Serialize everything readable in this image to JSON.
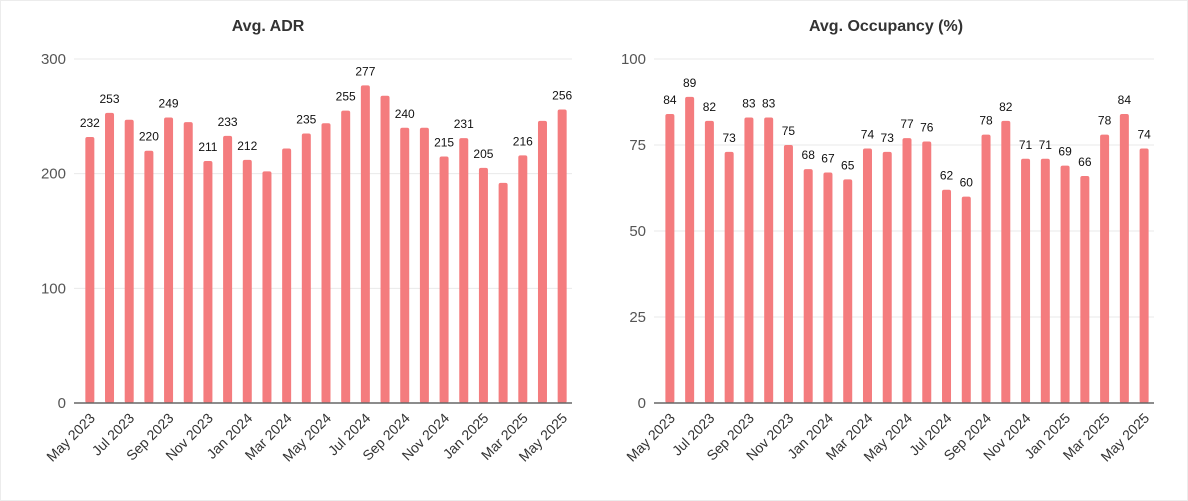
{
  "chart_data": [
    {
      "type": "bar",
      "title": "Avg. ADR",
      "xlabel": "",
      "ylabel": "",
      "ylim": [
        0,
        300
      ],
      "yticks": [
        0,
        100,
        200,
        300
      ],
      "grid": true,
      "color": "#F47C7E",
      "categories": [
        "May 2023",
        "Jun 2023",
        "Jul 2023",
        "Aug 2023",
        "Sep 2023",
        "Oct 2023",
        "Nov 2023",
        "Dec 2023",
        "Jan 2024",
        "Feb 2024",
        "Mar 2024",
        "Apr 2024",
        "May 2024",
        "Jun 2024",
        "Jul 2024",
        "Aug 2024",
        "Sep 2024",
        "Oct 2024",
        "Nov 2024",
        "Dec 2024",
        "Jan 2025",
        "Feb 2025",
        "Mar 2025",
        "Apr 2025",
        "May 2025"
      ],
      "tick_labels": [
        "May 2023",
        "Jul 2023",
        "Sep 2023",
        "Nov 2023",
        "Jan 2024",
        "Mar 2024",
        "May 2024",
        "Jul 2024",
        "Sep 2024",
        "Nov 2024",
        "Jan 2025",
        "Mar 2025",
        "May 2025"
      ],
      "values": [
        232,
        253,
        247,
        220,
        249,
        245,
        211,
        233,
        212,
        202,
        222,
        235,
        244,
        255,
        277,
        268,
        240,
        240,
        215,
        231,
        205,
        192,
        216,
        246,
        256
      ],
      "data_labels": [
        232,
        253,
        null,
        220,
        249,
        null,
        211,
        233,
        212,
        null,
        null,
        235,
        null,
        255,
        277,
        null,
        240,
        null,
        215,
        231,
        205,
        null,
        216,
        null,
        256
      ]
    },
    {
      "type": "bar",
      "title": "Avg. Occupancy (%)",
      "xlabel": "",
      "ylabel": "",
      "ylim": [
        0,
        100
      ],
      "yticks": [
        0,
        25,
        50,
        75,
        100
      ],
      "grid": true,
      "color": "#F47C7E",
      "categories": [
        "May 2023",
        "Jun 2023",
        "Jul 2023",
        "Aug 2023",
        "Sep 2023",
        "Oct 2023",
        "Nov 2023",
        "Dec 2023",
        "Jan 2024",
        "Feb 2024",
        "Mar 2024",
        "Apr 2024",
        "May 2024",
        "Jun 2024",
        "Jul 2024",
        "Aug 2024",
        "Sep 2024",
        "Oct 2024",
        "Nov 2024",
        "Dec 2024",
        "Jan 2025",
        "Feb 2025",
        "Mar 2025",
        "Apr 2025",
        "May 2025"
      ],
      "tick_labels": [
        "May 2023",
        "Jul 2023",
        "Sep 2023",
        "Nov 2023",
        "Jan 2024",
        "Mar 2024",
        "May 2024",
        "Jul 2024",
        "Sep 2024",
        "Nov 2024",
        "Jan 2025",
        "Mar 2025",
        "May 2025"
      ],
      "values": [
        84,
        89,
        82,
        73,
        83,
        83,
        75,
        68,
        67,
        65,
        74,
        73,
        77,
        76,
        62,
        60,
        78,
        82,
        71,
        71,
        69,
        66,
        78,
        84,
        74
      ],
      "data_labels": [
        84,
        89,
        82,
        73,
        83,
        83,
        75,
        68,
        67,
        65,
        74,
        73,
        77,
        76,
        62,
        60,
        78,
        82,
        71,
        71,
        69,
        66,
        78,
        84,
        74
      ]
    }
  ]
}
